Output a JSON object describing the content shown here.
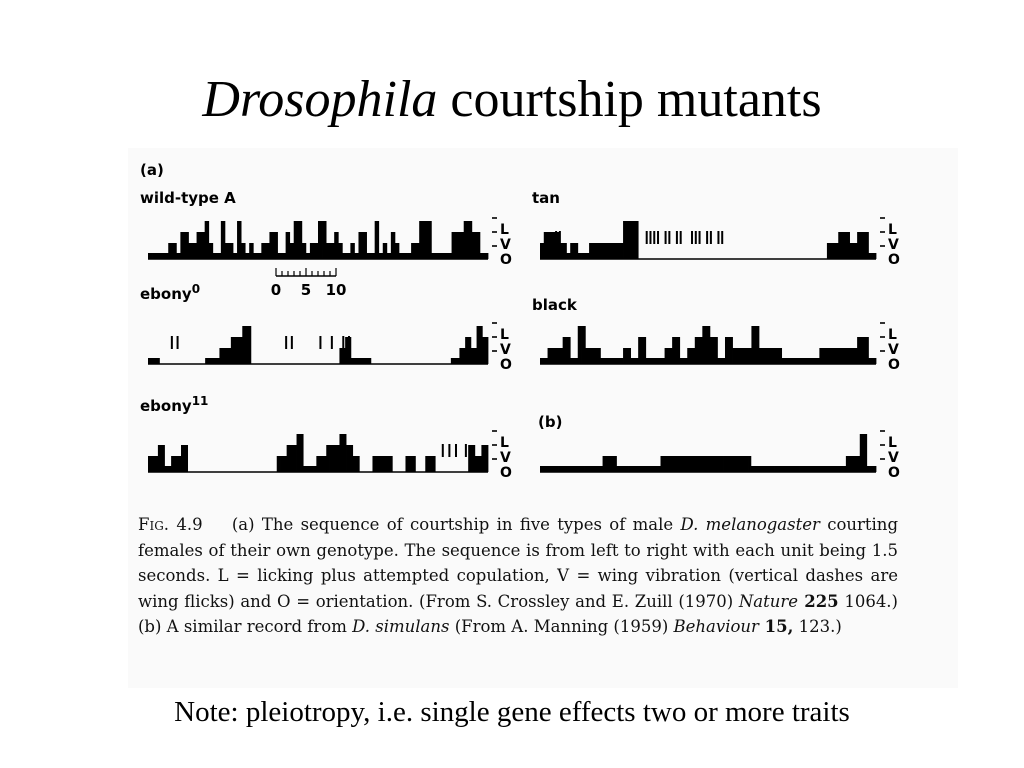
{
  "slide": {
    "title_italic": "Drosophila",
    "title_rest": " courtship mutants",
    "note": "Note: pleiotropy, i.e. single gene effects two or more traits"
  },
  "figure": {
    "label_a": "(a)",
    "label_b": "(b)",
    "scale": {
      "ticks": [
        "0",
        "5",
        "10"
      ]
    },
    "axis_letters": [
      "L",
      "V",
      "O"
    ],
    "ethograms": [
      {
        "label": "wild-type A",
        "sup": "",
        "levels": [
          0,
          0,
          0,
          0,
          0,
          1,
          1,
          0,
          2,
          2,
          1,
          1,
          2,
          2,
          3,
          1,
          0,
          0,
          3,
          1,
          1,
          0,
          3,
          1,
          0,
          1,
          0,
          0,
          1,
          1,
          2,
          2,
          0,
          0,
          2,
          1,
          3,
          3,
          1,
          0,
          1,
          1,
          3,
          3,
          1,
          1,
          2,
          1,
          0,
          0,
          1,
          0,
          2,
          2,
          0,
          0,
          3,
          0,
          1,
          0,
          2,
          1,
          0,
          0,
          0,
          1,
          1,
          3,
          3,
          3,
          0,
          0,
          0,
          0,
          0,
          2,
          2,
          2,
          3,
          3,
          2,
          2,
          0,
          0
        ]
      },
      {
        "label": "tan",
        "sup": "",
        "levels": [
          1,
          2,
          2,
          2,
          2,
          1,
          1,
          0,
          1,
          1,
          0,
          0,
          0,
          1,
          1,
          1,
          1,
          1,
          1,
          1,
          1,
          1,
          3,
          3,
          3,
          3,
          -1,
          -1,
          -1,
          -1,
          -1,
          -1,
          -1,
          -1,
          -1,
          -1,
          -1,
          -1,
          -1,
          -1,
          -1,
          -1,
          -1,
          -1,
          -1,
          -1,
          -1,
          -1,
          -1,
          -1,
          -1,
          -1,
          -1,
          -1,
          -1,
          -1,
          -1,
          -1,
          -1,
          -1,
          -1,
          -1,
          -1,
          -1,
          -1,
          -1,
          -1,
          -1,
          -1,
          -1,
          -1,
          -1,
          -1,
          -1,
          -1,
          -1,
          1,
          1,
          1,
          2,
          2,
          2,
          1,
          1,
          2,
          2,
          2,
          0,
          0
        ],
        "flicks": [
          4,
          5,
          28,
          29,
          30,
          31,
          33,
          34,
          36,
          37,
          40,
          41,
          42,
          44,
          45,
          47,
          48
        ]
      },
      {
        "label": "ebony",
        "sup": "0",
        "levels": [
          0,
          0,
          0,
          0,
          -1,
          -1,
          -1,
          -1,
          -1,
          -1,
          -1,
          -1,
          -1,
          -1,
          -1,
          -1,
          -1,
          -1,
          -1,
          -1,
          0,
          0,
          0,
          0,
          0,
          1,
          1,
          1,
          1,
          2,
          2,
          2,
          2,
          3,
          3,
          3,
          -1,
          -1,
          -1,
          -1,
          -1,
          -1,
          -1,
          -1,
          -1,
          -1,
          -1,
          -1,
          -1,
          -1,
          -1,
          -1,
          -1,
          -1,
          -1,
          -1,
          -1,
          -1,
          -1,
          -1,
          -1,
          -1,
          -1,
          -1,
          -1,
          -1,
          -1,
          1,
          1,
          2,
          2,
          0,
          0,
          0,
          0,
          0,
          0,
          0,
          -1,
          -1,
          -1,
          -1,
          -1,
          -1,
          -1,
          -1,
          -1,
          -1,
          -1,
          -1,
          -1,
          -1,
          -1,
          -1,
          -1,
          -1,
          -1,
          -1,
          -1,
          -1,
          -1,
          -1,
          -1,
          -1,
          -1,
          -1,
          0,
          0,
          0,
          1,
          1,
          2,
          2,
          1,
          1,
          3,
          3,
          2,
          2
        ],
        "flicks": [
          8,
          10,
          48,
          50,
          60,
          64,
          68,
          70
        ]
      },
      {
        "label": "black",
        "sup": "",
        "levels": [
          0,
          0,
          1,
          1,
          1,
          1,
          2,
          2,
          0,
          0,
          3,
          3,
          1,
          1,
          1,
          1,
          0,
          0,
          0,
          0,
          0,
          0,
          1,
          1,
          0,
          0,
          2,
          2,
          0,
          0,
          0,
          0,
          0,
          1,
          1,
          2,
          2,
          0,
          0,
          1,
          1,
          2,
          2,
          3,
          3,
          2,
          2,
          0,
          0,
          2,
          2,
          1,
          1,
          1,
          1,
          1,
          3,
          3,
          1,
          1,
          1,
          1,
          1,
          1,
          0,
          0,
          0,
          0,
          0,
          0,
          0,
          0,
          0,
          0,
          1,
          1,
          1,
          1,
          1,
          1,
          1,
          1,
          1,
          1,
          2,
          2,
          2,
          0,
          0
        ]
      },
      {
        "label": "ebony",
        "sup": "11",
        "levels": [
          1,
          1,
          1,
          2,
          2,
          0,
          0,
          1,
          1,
          1,
          2,
          2,
          -1,
          -1,
          -1,
          -1,
          -1,
          -1,
          -1,
          -1,
          -1,
          -1,
          -1,
          -1,
          -1,
          -1,
          -1,
          -1,
          -1,
          -1,
          -1,
          -1,
          -1,
          -1,
          -1,
          -1,
          -1,
          -1,
          -1,
          1,
          1,
          1,
          2,
          2,
          2,
          3,
          3,
          0,
          0,
          0,
          0,
          1,
          1,
          1,
          2,
          2,
          2,
          2,
          3,
          3,
          2,
          2,
          1,
          1,
          -1,
          -1,
          -1,
          -1,
          1,
          1,
          1,
          1,
          1,
          1,
          -1,
          -1,
          -1,
          -1,
          1,
          1,
          1,
          -1,
          -1,
          -1,
          1,
          1,
          1,
          -1,
          -1,
          -1,
          -1,
          -1,
          -1,
          -1,
          -1,
          -1,
          -1,
          2,
          2,
          1,
          1,
          2,
          2
        ],
        "flicks": [
          89,
          91,
          93,
          96
        ]
      },
      {
        "label": "",
        "sup": "",
        "levels": [
          0,
          0,
          0,
          0,
          0,
          0,
          0,
          0,
          0,
          0,
          0,
          0,
          0,
          0,
          0,
          0,
          0,
          0,
          0,
          0,
          0,
          0,
          0,
          0,
          0,
          0,
          0,
          1,
          1,
          1,
          1,
          1,
          1,
          0,
          0,
          0,
          0,
          0,
          0,
          0,
          0,
          0,
          0,
          0,
          0,
          0,
          0,
          0,
          0,
          0,
          0,
          0,
          1,
          1,
          1,
          1,
          1,
          1,
          1,
          1,
          1,
          1,
          1,
          1,
          1,
          1,
          1,
          1,
          1,
          1,
          1,
          1,
          1,
          1,
          1,
          1,
          1,
          1,
          1,
          1,
          1,
          1,
          1,
          1,
          1,
          1,
          1,
          1,
          1,
          1,
          1,
          0,
          0,
          0,
          0,
          0,
          0,
          0,
          0,
          0,
          0,
          0,
          0,
          0,
          0,
          0,
          0,
          0,
          0,
          0,
          0,
          0,
          0,
          0,
          0,
          0,
          0,
          0,
          0,
          0,
          0,
          0,
          0,
          0,
          0,
          0,
          0,
          0,
          0,
          0,
          0,
          0,
          1,
          1,
          1,
          1,
          1,
          1,
          3,
          3,
          3,
          0,
          0,
          0,
          0
        ]
      }
    ],
    "caption": {
      "fig_word": "Fig.",
      "fig_num": "4.9",
      "t1": "(a) The sequence of courtship in five types of male ",
      "species1": "D. melanogaster",
      "t2": " courting females of their own genotype. The sequence is from left to right with each unit being 1.5 seconds. L = licking plus attempted copulation, V = wing vibration (vertical dashes are wing flicks) and O = orientation. (From S. Crossley and E. Zuill (1970) ",
      "journal1": "Nature",
      "vol1": " 225",
      "t3": " 1064.) (b) A similar record from ",
      "species2": "D. simulans",
      "t4": " (From A. Manning (1959) ",
      "journal2": "Behaviour",
      "vol2": " 15,",
      "t5": " 123.)"
    }
  }
}
